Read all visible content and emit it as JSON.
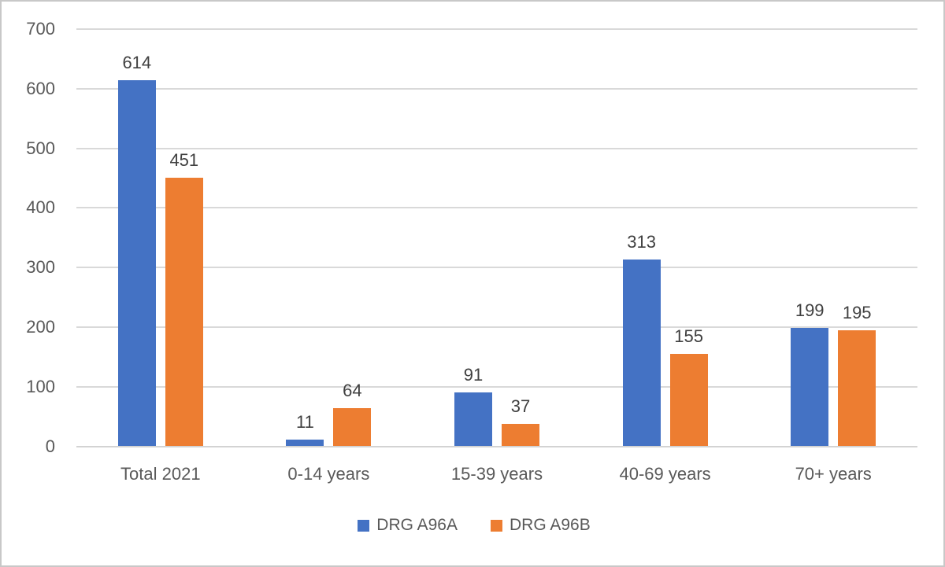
{
  "chart_data": {
    "type": "bar",
    "title": "",
    "categories": [
      "Total 2021",
      "0-14 years",
      "15-39 years",
      "40-69 years",
      "70+ years"
    ],
    "series": [
      {
        "name": "DRG A96A",
        "color": "#4472C4",
        "values": [
          614,
          11,
          91,
          313,
          199
        ]
      },
      {
        "name": "DRG A96B",
        "color": "#ED7D31",
        "values": [
          451,
          64,
          37,
          155,
          195
        ]
      }
    ],
    "y_axis": {
      "min": 0,
      "max": 700,
      "step": 100,
      "tick_labels": [
        "0",
        "100",
        "200",
        "300",
        "400",
        "500",
        "600",
        "700"
      ]
    },
    "grid": true,
    "data_labels": true,
    "legend": {
      "position": "bottom",
      "entries": [
        "DRG A96A",
        "DRG A96B"
      ]
    }
  },
  "colors": {
    "series_a": "#4472C4",
    "series_b": "#ED7D31",
    "gridline": "#D9D9D9",
    "axis_text": "#595959",
    "data_label_text": "#404040",
    "frame_border": "#C8C8C8",
    "background": "#FFFFFF"
  }
}
